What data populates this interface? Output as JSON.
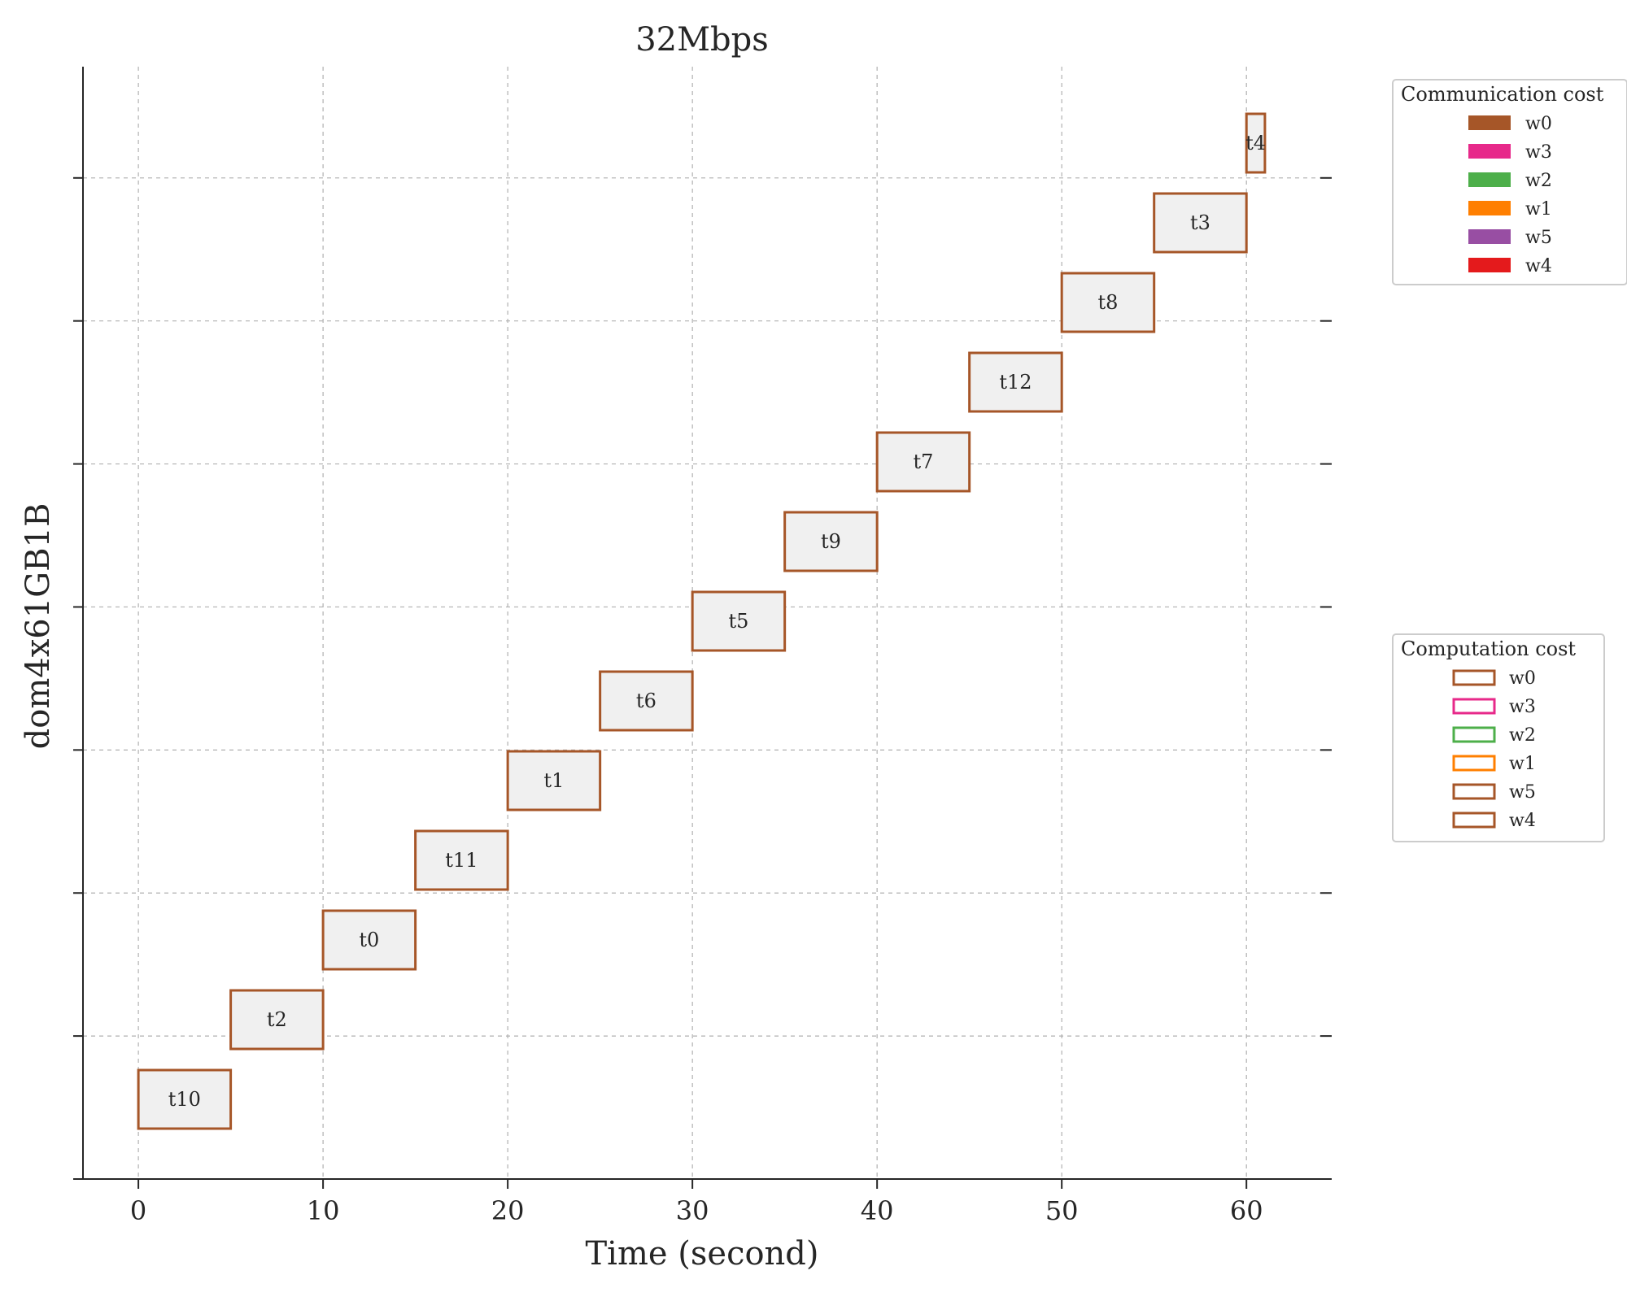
{
  "chart_data": {
    "type": "gantt",
    "title": "32Mbps",
    "xlabel": "Time (second)",
    "ylabel": "dom4x61GB1B",
    "xlim": [
      -3,
      64
    ],
    "xticks": [
      0,
      10,
      20,
      30,
      40,
      50,
      60
    ],
    "grid": true,
    "ylim": [
      0,
      14
    ],
    "row_guides": [
      0,
      1.8,
      3.6,
      5.4,
      7.2,
      9.0,
      10.8,
      12.6
    ],
    "tasks": [
      {
        "name": "t10",
        "start": 0,
        "end": 5,
        "worker": "w0",
        "level": 0
      },
      {
        "name": "t2",
        "start": 5,
        "end": 10,
        "worker": "w0",
        "level": 1
      },
      {
        "name": "t0",
        "start": 10,
        "end": 15,
        "worker": "w0",
        "level": 2
      },
      {
        "name": "t11",
        "start": 15,
        "end": 20,
        "worker": "w0",
        "level": 3
      },
      {
        "name": "t1",
        "start": 20,
        "end": 25,
        "worker": "w0",
        "level": 4
      },
      {
        "name": "t6",
        "start": 25,
        "end": 30,
        "worker": "w0",
        "level": 5
      },
      {
        "name": "t5",
        "start": 30,
        "end": 35,
        "worker": "w0",
        "level": 6
      },
      {
        "name": "t9",
        "start": 35,
        "end": 40,
        "worker": "w0",
        "level": 7
      },
      {
        "name": "t7",
        "start": 40,
        "end": 45,
        "worker": "w0",
        "level": 8
      },
      {
        "name": "t12",
        "start": 45,
        "end": 50,
        "worker": "w0",
        "level": 9
      },
      {
        "name": "t8",
        "start": 50,
        "end": 55,
        "worker": "w0",
        "level": 10
      },
      {
        "name": "t3",
        "start": 55,
        "end": 60,
        "worker": "w0",
        "level": 11
      },
      {
        "name": "t4",
        "start": 60,
        "end": 61,
        "worker": "w0",
        "level": 12
      }
    ],
    "legends": [
      {
        "title": "Communication cost",
        "style": "filled",
        "placement": "upper-right-outside",
        "entries": [
          {
            "label": "w0",
            "color": "#a65628"
          },
          {
            "label": "w3",
            "color": "#e7298a"
          },
          {
            "label": "w2",
            "color": "#4daf4a"
          },
          {
            "label": "w1",
            "color": "#ff7f00"
          },
          {
            "label": "w5",
            "color": "#984ea3"
          },
          {
            "label": "w4",
            "color": "#e41a1c"
          }
        ]
      },
      {
        "title": "Computation cost",
        "style": "outline",
        "placement": "center-right-outside",
        "entries": [
          {
            "label": "w0",
            "color": "#a65628"
          },
          {
            "label": "w3",
            "color": "#e7298a"
          },
          {
            "label": "w2",
            "color": "#4daf4a"
          },
          {
            "label": "w1",
            "color": "#ff7f00"
          },
          {
            "label": "w5",
            "color": "#a65628"
          },
          {
            "label": "w4",
            "color": "#a65628"
          }
        ]
      }
    ],
    "colors": {
      "bar_fill": "#f0f0f0",
      "bar_edge": "#a65628",
      "axis": "#262626",
      "grid": "#b0b0b0"
    }
  }
}
